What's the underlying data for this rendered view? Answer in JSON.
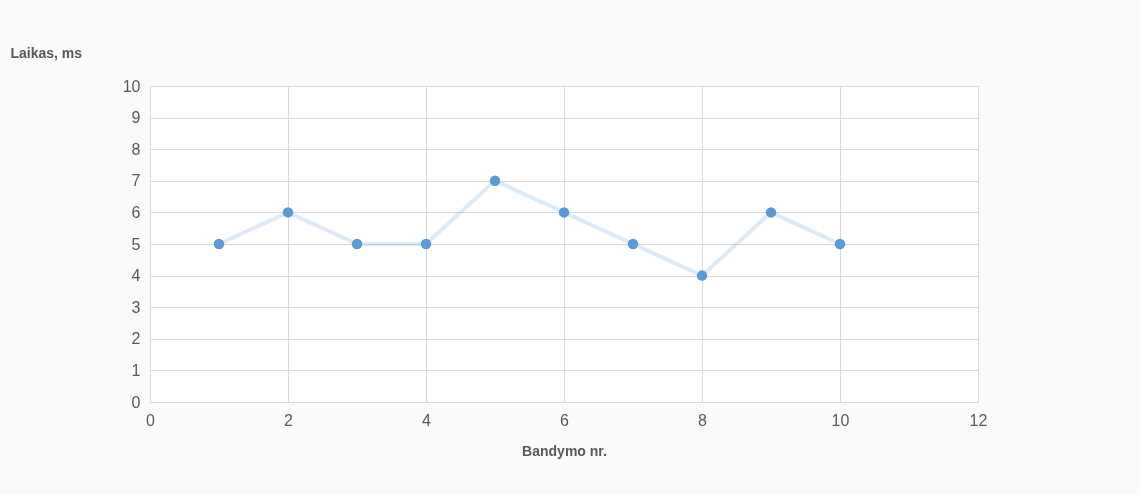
{
  "chart_data": {
    "type": "line",
    "xlabel": "Bandymo nr.",
    "ylabel": "Laikas, ms",
    "x": [
      1,
      2,
      3,
      4,
      5,
      6,
      7,
      8,
      9,
      10
    ],
    "series": [
      {
        "color": "#5b9bd5",
        "values": [
          5,
          6,
          5,
          5,
          7,
          6,
          5,
          4,
          6,
          5
        ]
      }
    ],
    "xlim": [
      0,
      12
    ],
    "xticks": [
      0,
      2,
      4,
      6,
      8,
      10,
      12
    ],
    "ylim": [
      0,
      10
    ],
    "yticks": [
      0,
      1,
      2,
      3,
      4,
      5,
      6,
      7,
      8,
      9,
      10
    ],
    "grid": true,
    "marker": "circle",
    "line_style": "solid"
  }
}
